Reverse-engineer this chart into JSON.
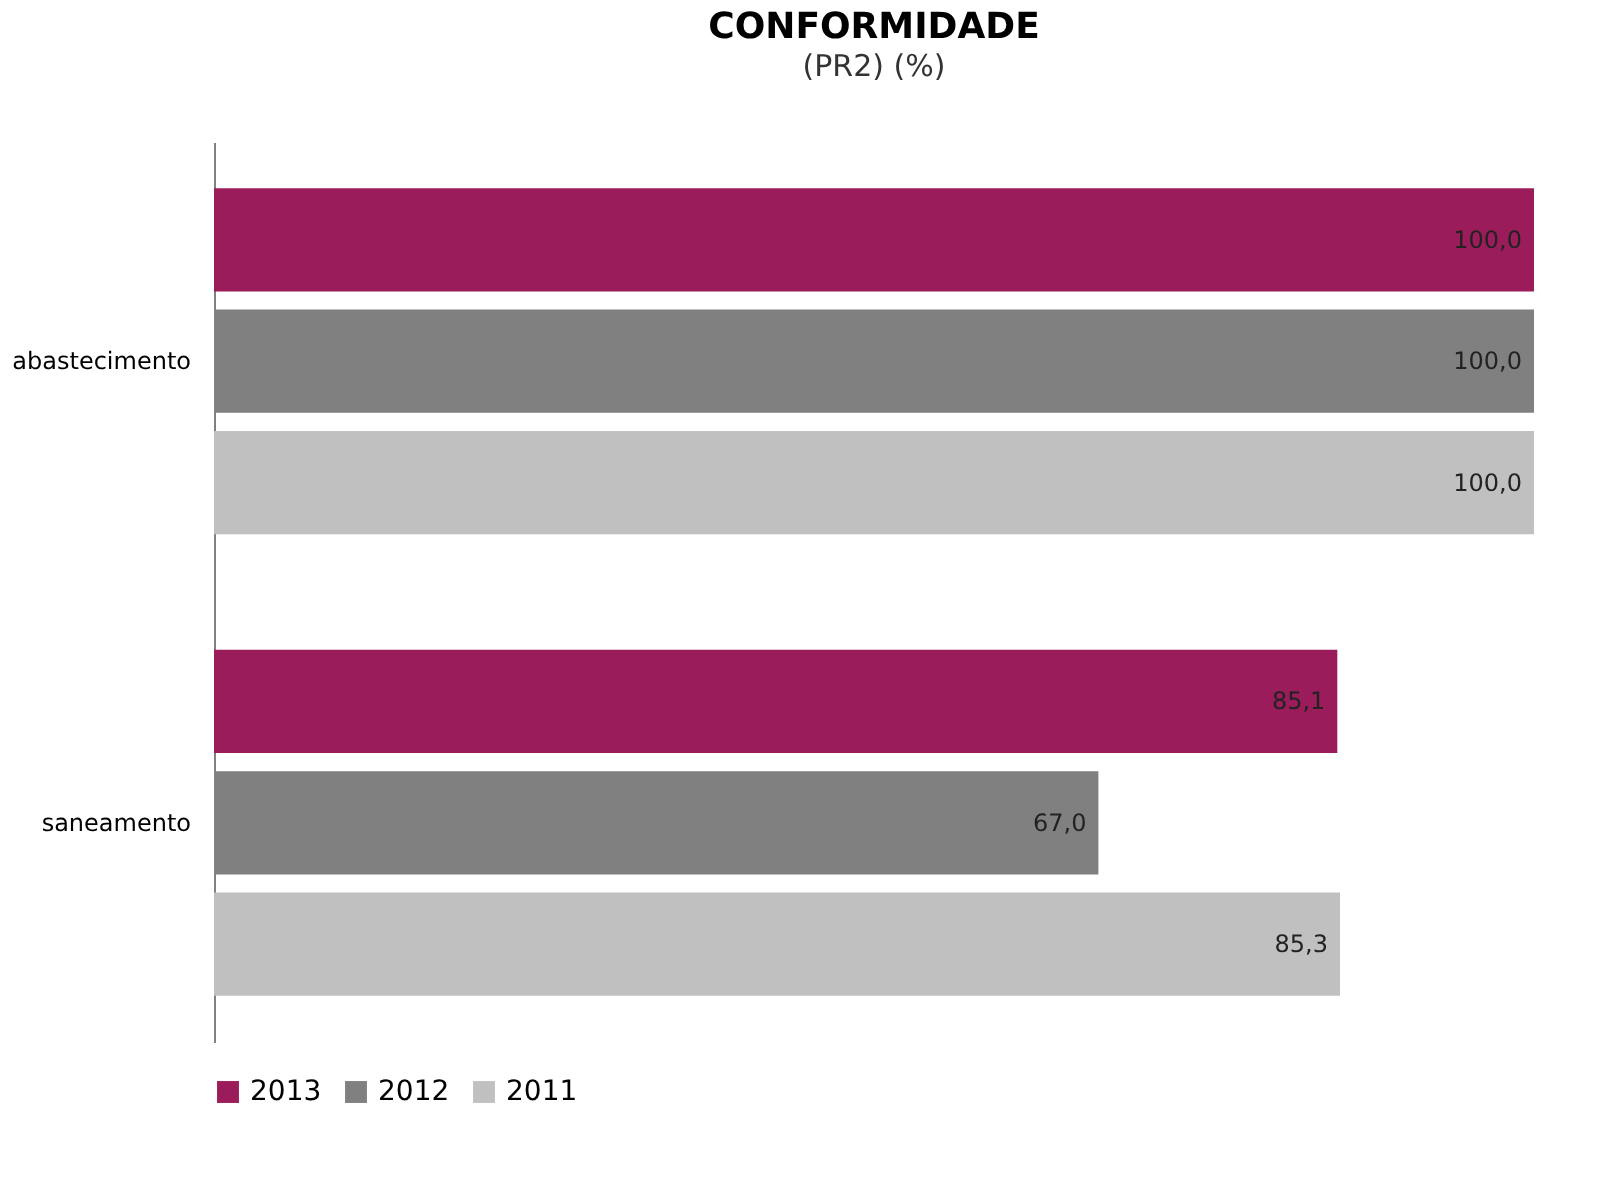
{
  "chart_data": {
    "type": "bar",
    "orientation": "horizontal",
    "title": "CONFORMIDADE",
    "subtitle": "(PR2) (%)",
    "categories": [
      "abastecimento",
      "saneamento"
    ],
    "series": [
      {
        "name": "2013",
        "color": "#9b1c5a",
        "values": [
          100.0,
          85.1
        ],
        "value_labels": [
          "100,0",
          "85,1"
        ]
      },
      {
        "name": "2012",
        "color": "#808080",
        "values": [
          100.0,
          67.0
        ],
        "value_labels": [
          "100,0",
          "67,0"
        ]
      },
      {
        "name": "2011",
        "color": "#c0c0c0",
        "values": [
          100.0,
          85.3
        ],
        "value_labels": [
          "100,0",
          "85,3"
        ]
      }
    ],
    "xlim": [
      0,
      100
    ],
    "legend": "bottom",
    "tick_labels": "y"
  }
}
